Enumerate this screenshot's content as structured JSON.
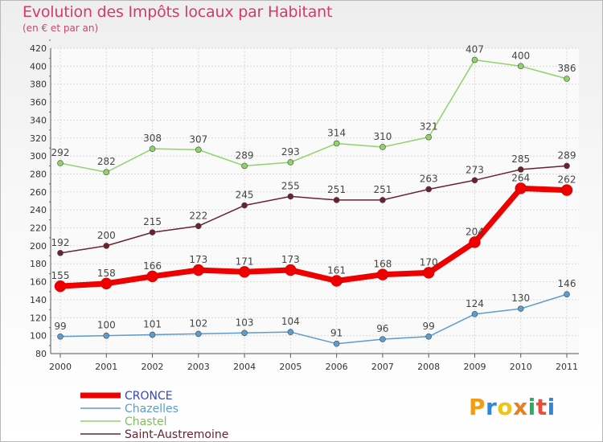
{
  "title": "Evolution des Impôts locaux par Habitant",
  "subtitle": "(en € et par an)",
  "logo": {
    "letters": [
      "P",
      "r",
      "o",
      "x",
      "i",
      "t",
      "i"
    ],
    "colors": [
      "#f39c12",
      "#2e86de",
      "#f1c40f",
      "#e67e22",
      "#27ae60",
      "#e74c3c",
      "#2e86de"
    ]
  },
  "chart_data": {
    "type": "line",
    "x": [
      "2000",
      "2001",
      "2002",
      "2003",
      "2004",
      "2005",
      "2006",
      "2007",
      "2008",
      "2009",
      "2010",
      "2011"
    ],
    "ylim": [
      80,
      420
    ],
    "yticks": [
      80,
      100,
      120,
      140,
      160,
      180,
      200,
      220,
      240,
      260,
      280,
      300,
      320,
      340,
      360,
      380,
      400,
      420
    ],
    "grid": true,
    "legend_placement": "bottom-left",
    "series": [
      {
        "name": "CRONCE",
        "color": "#ee0000",
        "label_color": "#3344cc",
        "values": [
          155,
          158,
          166,
          173,
          171,
          173,
          161,
          168,
          170,
          204,
          264,
          262
        ]
      },
      {
        "name": "Chazelles",
        "color": "#5d9ccc",
        "label_color": "#5d9ccc",
        "values": [
          99,
          100,
          101,
          102,
          103,
          104,
          91,
          96,
          99,
          124,
          130,
          146
        ]
      },
      {
        "name": "Chastel",
        "color": "#8fd36a",
        "label_color": "#7fbf5a",
        "values": [
          292,
          282,
          308,
          307,
          289,
          293,
          314,
          310,
          321,
          407,
          400,
          386
        ]
      },
      {
        "name": "Saint-Austremoine",
        "color": "#6b2230",
        "label_color": "#6b2230",
        "values": [
          192,
          200,
          215,
          222,
          245,
          255,
          251,
          251,
          263,
          273,
          285,
          289
        ]
      }
    ]
  }
}
